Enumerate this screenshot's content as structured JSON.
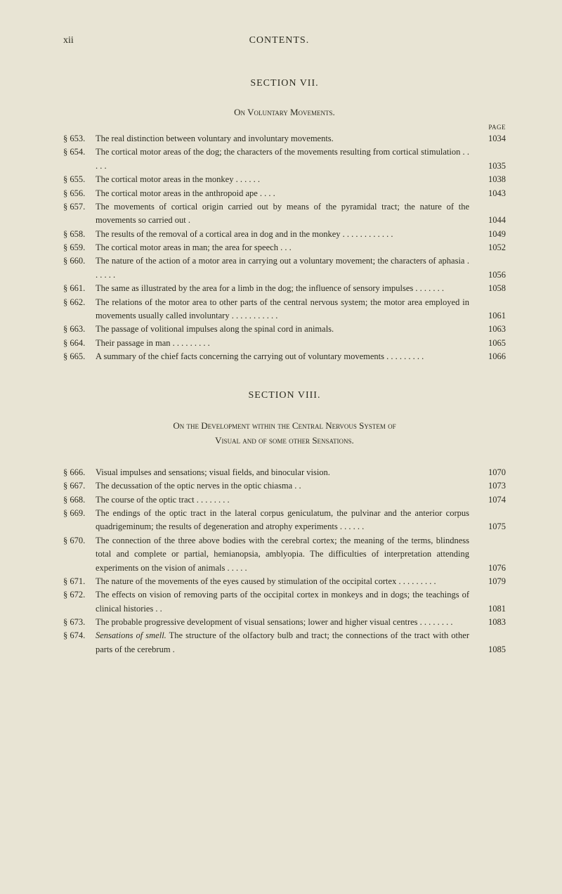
{
  "page_number": "xii",
  "running_head": "CONTENTS.",
  "section7": {
    "title": "SECTION VII.",
    "subtitle": "On Voluntary Movements.",
    "page_label": "PAGE",
    "entries": [
      {
        "ref": "§ 653.",
        "text": "The real distinction between voluntary and involuntary movements.",
        "page": "1034"
      },
      {
        "ref": "§ 654.",
        "text": "The cortical motor areas of the dog; the characters of the movements resulting from cortical stimulation   .   .   .   .   .",
        "page": "1035"
      },
      {
        "ref": "§ 655.",
        "text": "The cortical motor areas in the monkey   .   .   .   .   .   .",
        "page": "1038"
      },
      {
        "ref": "§ 656.",
        "text": "The cortical motor areas in the anthropoid ape   .   .   .   .",
        "page": "1043"
      },
      {
        "ref": "§ 657.",
        "text": "The movements of cortical origin carried out by means of the pyramidal tract; the nature of the movements so carried out   .",
        "page": "1044"
      },
      {
        "ref": "§ 658.",
        "text": "The results of the removal of a cortical area in dog and in the monkey   .   .   .   .   .   .   .   .   .   .   .   .",
        "page": "1049"
      },
      {
        "ref": "§ 659.",
        "text": "The cortical motor areas in man; the area for speech   .   .   .",
        "page": "1052"
      },
      {
        "ref": "§ 660.",
        "text": "The nature of the action of a motor area in carrying out a voluntary movement; the characters of aphasia   .   .   .   .   .   .",
        "page": "1056"
      },
      {
        "ref": "§ 661.",
        "text": "The same as illustrated by the area for a limb in the dog; the influence of sensory impulses   .   .   .   .   .   .   .",
        "page": "1058"
      },
      {
        "ref": "§ 662.",
        "text": "The relations of the motor area to other parts of the central nervous system; the motor area employed in movements usually called involuntary   .   .   .   .   .   .   .   .   .   .   .",
        "page": "1061"
      },
      {
        "ref": "§ 663.",
        "text": "The passage of volitional impulses along the spinal cord in animals.",
        "page": "1063"
      },
      {
        "ref": "§ 664.",
        "text": "Their passage in man   .   .   .   .   .   .   .   .   .",
        "page": "1065"
      },
      {
        "ref": "§ 665.",
        "text": "A summary of the chief facts concerning the carrying out of voluntary movements   .   .   .   .   .   .   .   .   .",
        "page": "1066"
      }
    ]
  },
  "section8": {
    "title": "SECTION VIII.",
    "subtitle_line1": "On the Development within the Central Nervous System of",
    "subtitle_line2": "Visual and of some other Sensations.",
    "entries": [
      {
        "ref": "§ 666.",
        "text": "Visual impulses and sensations; visual fields, and binocular vision.",
        "page": "1070"
      },
      {
        "ref": "§ 667.",
        "text": "The decussation of the optic nerves in the optic chiasma   .   .",
        "page": "1073"
      },
      {
        "ref": "§ 668.",
        "text": "The course of the optic tract   .   .   .   .   .   .   .   .",
        "page": "1074"
      },
      {
        "ref": "§ 669.",
        "text": "The endings of the optic tract in the lateral corpus geniculatum, the pulvinar and the anterior corpus quadrigeminum; the results of degeneration and atrophy experiments   .   .   .   .   .   .",
        "page": "1075"
      },
      {
        "ref": "§ 670.",
        "text": "The connection of the three above bodies with the cerebral cortex; the meaning of the terms, blindness total and complete or partial, hemianopsia, amblyopia. The difficulties of interpretation attending experiments on the vision of animals   .   .   .   .   .",
        "page": "1076"
      },
      {
        "ref": "§ 671.",
        "text": "The nature of the movements of the eyes caused by stimulation of the occipital cortex   .   .   .   .   .   .   .   .   .",
        "page": "1079"
      },
      {
        "ref": "§ 672.",
        "text": "The effects on vision of removing parts of the occipital cortex in monkeys and in dogs; the teachings of clinical histories   .   .",
        "page": "1081"
      },
      {
        "ref": "§ 673.",
        "text": "The probable progressive development of visual sensations; lower and higher visual centres   .   .   .   .   .   .   .   .",
        "page": "1083"
      },
      {
        "ref": "§ 674.",
        "text_prefix": "Sensations of smell.",
        "text": "  The structure of the olfactory bulb and tract; the connections of the tract with other parts of the cerebrum   .",
        "page": "1085"
      }
    ]
  }
}
